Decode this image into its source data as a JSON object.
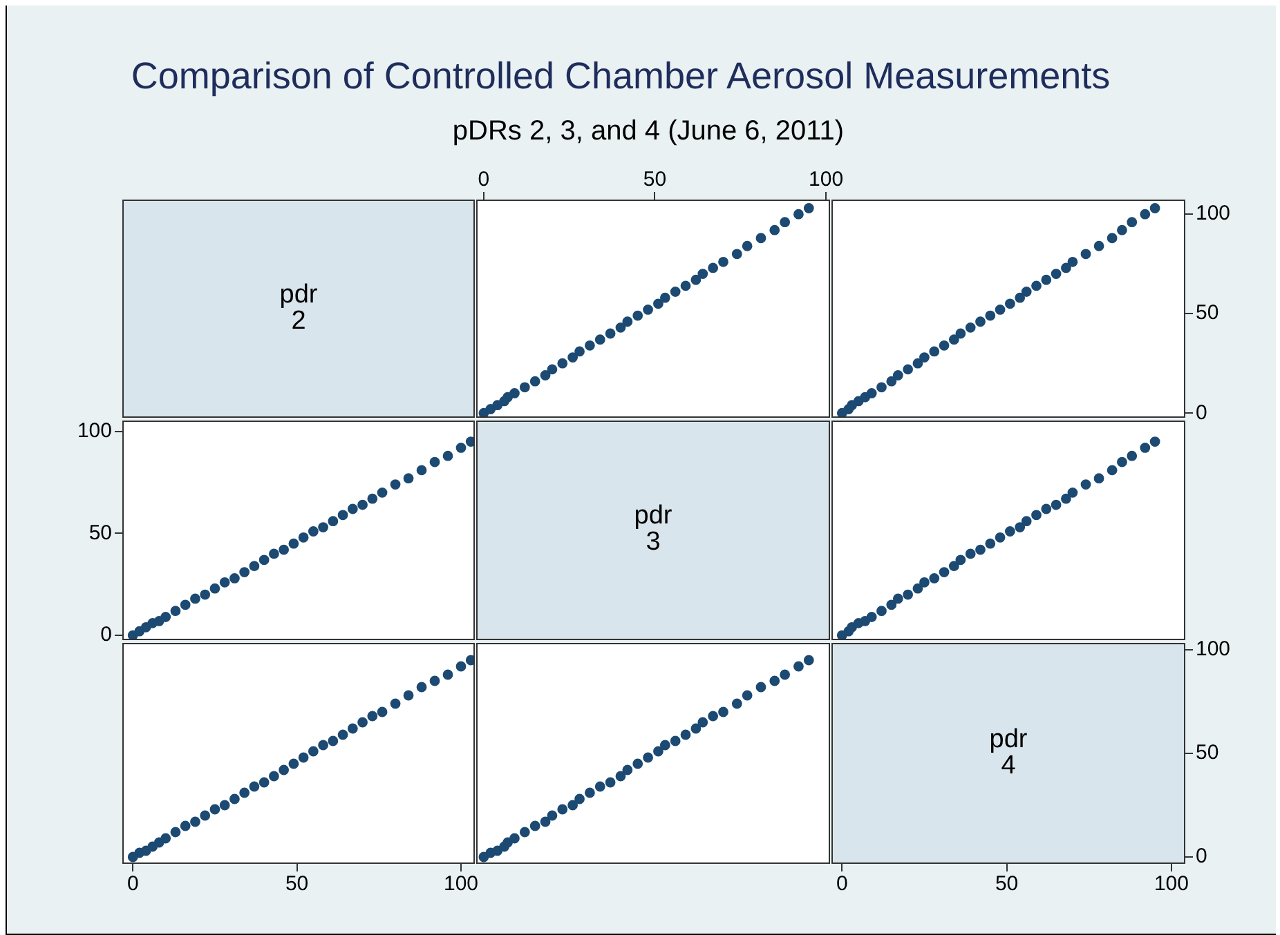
{
  "chart_data": [
    {
      "type": "other",
      "title": "Comparison of Controlled Chamber Aerosol Measurements",
      "subtitle": "pDRs 2, 3, and 4 (June 6, 2011)",
      "annotations": [
        "pdr",
        "2"
      ]
    },
    {
      "type": "scatter",
      "color": "#1c4a73",
      "xlim": [
        -2,
        101
      ],
      "ylim": [
        -2,
        107
      ],
      "xticks": [
        0,
        50,
        100
      ],
      "tick_labels": "x",
      "x": [
        0,
        2,
        4,
        6,
        7,
        9,
        12,
        15,
        18,
        20,
        23,
        26,
        28,
        31,
        34,
        37,
        40,
        42,
        45,
        48,
        51,
        53,
        56,
        59,
        62,
        64,
        67,
        70,
        74,
        77,
        81,
        85,
        88,
        92,
        95
      ],
      "values": [
        0,
        2,
        4,
        6,
        8,
        10,
        13,
        16,
        19,
        22,
        25,
        28,
        31,
        34,
        37,
        40,
        43,
        46,
        49,
        52,
        55,
        58,
        61,
        64,
        67,
        70,
        73,
        76,
        80,
        84,
        88,
        92,
        96,
        100,
        103
      ]
    },
    {
      "type": "scatter",
      "color": "#1c4a73",
      "xlim": [
        -3,
        104
      ],
      "ylim": [
        -2,
        107
      ],
      "yticks": [
        0,
        50,
        100
      ],
      "tick_labels": "y",
      "x": [
        0,
        2,
        3,
        5,
        7,
        9,
        12,
        15,
        17,
        20,
        23,
        25,
        28,
        31,
        34,
        36,
        39,
        42,
        45,
        48,
        51,
        54,
        56,
        59,
        62,
        65,
        68,
        70,
        74,
        78,
        82,
        85,
        88,
        92,
        95
      ],
      "values": [
        0,
        2,
        4,
        6,
        8,
        10,
        13,
        16,
        19,
        22,
        25,
        28,
        31,
        34,
        37,
        40,
        43,
        46,
        49,
        52,
        55,
        58,
        61,
        64,
        67,
        70,
        73,
        76,
        80,
        84,
        88,
        92,
        96,
        100,
        103
      ]
    },
    {
      "type": "scatter",
      "color": "#1c4a73",
      "xlim": [
        -3,
        104
      ],
      "ylim": [
        -2,
        105
      ],
      "yticks": [
        0,
        50,
        100
      ],
      "tick_labels": "y",
      "x": [
        0,
        2,
        4,
        6,
        8,
        10,
        13,
        16,
        19,
        22,
        25,
        28,
        31,
        34,
        37,
        40,
        43,
        46,
        49,
        52,
        55,
        58,
        61,
        64,
        67,
        70,
        73,
        76,
        80,
        84,
        88,
        92,
        96,
        100,
        103
      ],
      "values": [
        0,
        2,
        4,
        6,
        7,
        9,
        12,
        15,
        18,
        20,
        23,
        26,
        28,
        31,
        34,
        37,
        40,
        42,
        45,
        48,
        51,
        53,
        56,
        59,
        62,
        64,
        67,
        70,
        74,
        77,
        81,
        85,
        88,
        92,
        95
      ]
    },
    {
      "type": "other",
      "annotations": [
        "pdr",
        "3"
      ]
    },
    {
      "type": "scatter",
      "color": "#1c4a73",
      "xlim": [
        -3,
        104
      ],
      "ylim": [
        -2,
        105
      ],
      "x": [
        0,
        2,
        3,
        5,
        7,
        9,
        12,
        15,
        17,
        20,
        23,
        25,
        28,
        31,
        34,
        36,
        39,
        42,
        45,
        48,
        51,
        54,
        56,
        59,
        62,
        65,
        68,
        70,
        74,
        78,
        82,
        85,
        88,
        92,
        95
      ],
      "values": [
        0,
        2,
        4,
        6,
        7,
        9,
        12,
        15,
        18,
        20,
        23,
        26,
        28,
        31,
        34,
        37,
        40,
        42,
        45,
        48,
        51,
        53,
        56,
        59,
        62,
        64,
        67,
        70,
        74,
        77,
        81,
        85,
        88,
        92,
        95
      ]
    },
    {
      "type": "scatter",
      "color": "#1c4a73",
      "xlim": [
        -3,
        104
      ],
      "ylim": [
        -3,
        103
      ],
      "xticks": [
        0,
        50,
        100
      ],
      "tick_labels": "x",
      "x": [
        0,
        2,
        4,
        6,
        8,
        10,
        13,
        16,
        19,
        22,
        25,
        28,
        31,
        34,
        37,
        40,
        43,
        46,
        49,
        52,
        55,
        58,
        61,
        64,
        67,
        70,
        73,
        76,
        80,
        84,
        88,
        92,
        96,
        100,
        103
      ],
      "values": [
        0,
        2,
        3,
        5,
        7,
        9,
        12,
        15,
        17,
        20,
        23,
        25,
        28,
        31,
        34,
        36,
        39,
        42,
        45,
        48,
        51,
        54,
        56,
        59,
        62,
        65,
        68,
        70,
        74,
        78,
        82,
        85,
        88,
        92,
        95
      ]
    },
    {
      "type": "scatter",
      "color": "#1c4a73",
      "xlim": [
        -2,
        101
      ],
      "ylim": [
        -3,
        103
      ],
      "x": [
        0,
        2,
        4,
        6,
        7,
        9,
        12,
        15,
        18,
        20,
        23,
        26,
        28,
        31,
        34,
        37,
        40,
        42,
        45,
        48,
        51,
        53,
        56,
        59,
        62,
        64,
        67,
        70,
        74,
        77,
        81,
        85,
        88,
        92,
        95
      ],
      "values": [
        0,
        2,
        3,
        5,
        7,
        9,
        12,
        15,
        17,
        20,
        23,
        25,
        28,
        31,
        34,
        36,
        39,
        42,
        45,
        48,
        51,
        54,
        56,
        59,
        62,
        65,
        68,
        70,
        74,
        78,
        82,
        85,
        88,
        92,
        95
      ]
    },
    {
      "type": "scatter",
      "annotations": [
        "pdr",
        "4"
      ],
      "xlim": [
        -3,
        104
      ],
      "xticks": [
        0,
        50,
        100
      ],
      "ylim": [
        -3,
        103
      ],
      "yticks": [
        0,
        50,
        100
      ]
    }
  ]
}
